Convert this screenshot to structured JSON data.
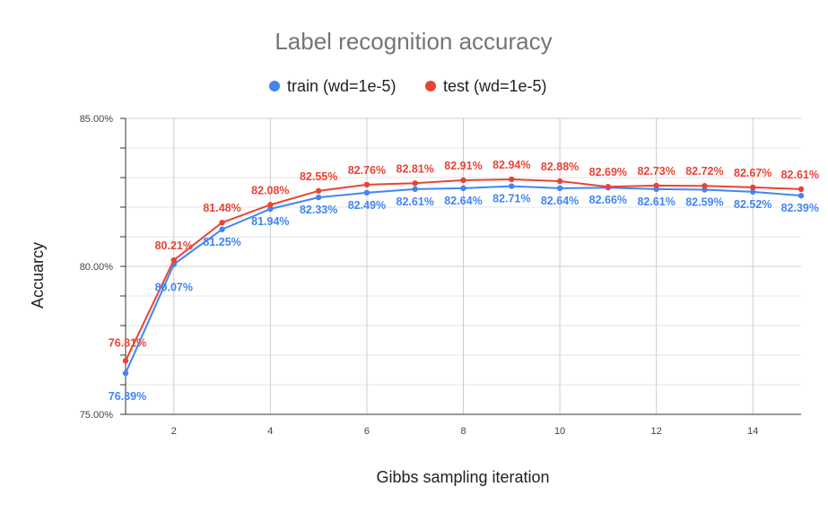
{
  "chart_data": {
    "type": "line",
    "title": "Label recognition accuracy",
    "xlabel": "Gibbs sampling iteration",
    "ylabel": "Accuarcy",
    "x": [
      1,
      2,
      3,
      4,
      5,
      6,
      7,
      8,
      9,
      10,
      11,
      12,
      13,
      14,
      15
    ],
    "xlim": [
      1,
      15
    ],
    "xticks": [
      "2",
      "4",
      "6",
      "8",
      "10",
      "12",
      "14"
    ],
    "ylim": [
      75,
      85
    ],
    "yticks": [
      "75.00%",
      "80.00%",
      "85.00%"
    ],
    "grid": true,
    "legend": "top",
    "series": [
      {
        "name": "train (wd=1e-5)",
        "color": "#4285f4",
        "values": [
          76.39,
          80.07,
          81.25,
          81.94,
          82.33,
          82.49,
          82.61,
          82.64,
          82.71,
          82.64,
          82.66,
          82.61,
          82.59,
          82.52,
          82.39
        ],
        "labels": [
          "76.39%",
          "80.07%",
          "81.25%",
          "81.94%",
          "82.33%",
          "82.49%",
          "82.61%",
          "82.64%",
          "82.71%",
          "82.64%",
          "82.66%",
          "82.61%",
          "82.59%",
          "82.52%",
          "82.39%"
        ]
      },
      {
        "name": "test (wd=1e-5)",
        "color": "#ea4335",
        "values": [
          76.81,
          80.21,
          81.48,
          82.08,
          82.55,
          82.76,
          82.81,
          82.91,
          82.94,
          82.88,
          82.69,
          82.73,
          82.72,
          82.67,
          82.61
        ],
        "labels": [
          "76.81%",
          "80.21%",
          "81.48%",
          "82.08%",
          "82.55%",
          "82.76%",
          "82.81%",
          "82.91%",
          "82.94%",
          "82.88%",
          "82.69%",
          "82.73%",
          "82.72%",
          "82.67%",
          "82.61%"
        ]
      }
    ]
  }
}
